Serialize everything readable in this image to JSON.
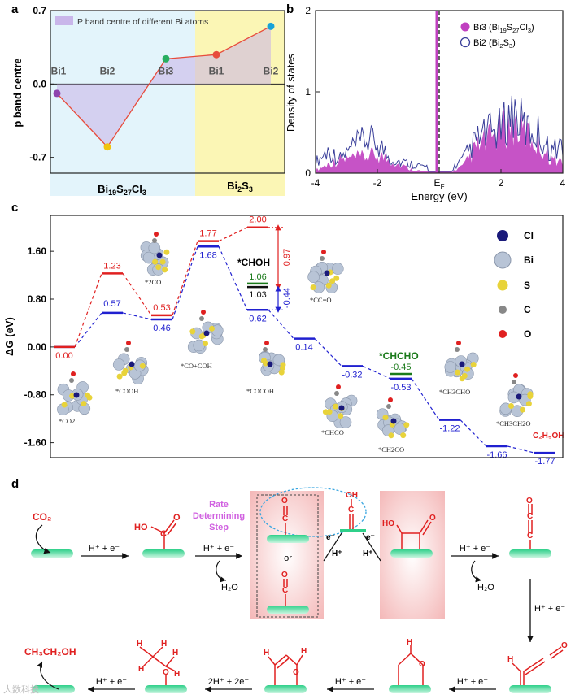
{
  "panel_labels": {
    "a": "a",
    "b": "b",
    "c": "c",
    "d": "d"
  },
  "chart_data": [
    {
      "type": "line",
      "panel": "a",
      "title": "",
      "ylabel": "p band centre",
      "ylim": [
        -0.85,
        0.7
      ],
      "yticks": [
        "0.7",
        "0.0",
        "-0.7"
      ],
      "legend": "P band centre of different Bi atoms",
      "categories": [
        "Bi1",
        "Bi2",
        "Bi3",
        "Bi1",
        "Bi2"
      ],
      "values": [
        -0.09,
        -0.6,
        0.24,
        0.28,
        0.55
      ],
      "groups": [
        {
          "label_main": "Bi",
          "label_sub1": "19",
          "label_mid": "S",
          "label_sub2": "27",
          "label_end": "Cl",
          "label_sub3": "3"
        },
        {
          "label_main": "Bi",
          "label_sub1": "2",
          "label_mid": "S",
          "label_sub2": "3"
        }
      ],
      "point_colors": [
        "#8e44ad",
        "#f1c40f",
        "#27ae60",
        "#e74c3c",
        "#17a2d8"
      ]
    },
    {
      "type": "area",
      "panel": "b",
      "xlabel": "Energy (eV)",
      "ylabel": "Density of states",
      "xlim": [
        -4,
        4
      ],
      "ylim": [
        0,
        2
      ],
      "xticks": [
        "-4",
        "-2",
        "E",
        "2",
        "4"
      ],
      "ef_sub": "F",
      "yticks": [
        "0",
        "1",
        "2"
      ],
      "series": [
        {
          "name": "Bi3 (Bi19S27Cl3)",
          "legend_main": "Bi3 (Bi",
          "s1": "19",
          "m1": "S",
          "s2": "27",
          "m2": "Cl",
          "s3": "3",
          "end": ")",
          "color": "#c040c0",
          "x": [
            -4,
            -3.6,
            -3.2,
            -2.8,
            -2.4,
            -2.0,
            -1.6,
            -1.2,
            -0.8,
            -0.4,
            0,
            0.4,
            0.8,
            1.2,
            1.6,
            2.0,
            2.4,
            2.8,
            3.2,
            3.6,
            4
          ],
          "values": [
            0.04,
            0.12,
            0.18,
            0.2,
            0.22,
            0.25,
            0.18,
            0.1,
            0.04,
            0.02,
            0.0,
            0.02,
            0.1,
            0.35,
            0.45,
            0.6,
            0.65,
            0.55,
            0.4,
            0.2,
            0.15
          ]
        },
        {
          "name": "Bi2 (Bi2S3)",
          "legend_main": "Bi2 (Bi",
          "s1": "2",
          "m1": "S",
          "s2": "3",
          "end": ")",
          "color": "#3a3f9a",
          "x": [
            -4,
            -3.6,
            -3.2,
            -2.8,
            -2.4,
            -2.0,
            -1.6,
            -1.2,
            -0.8,
            -0.4,
            0,
            0.4,
            0.8,
            1.2,
            1.6,
            2.0,
            2.4,
            2.8,
            3.2,
            3.6,
            4
          ],
          "values": [
            0.15,
            0.3,
            0.2,
            0.35,
            0.45,
            0.42,
            0.2,
            0.15,
            0.12,
            0.08,
            0.05,
            0.05,
            0.2,
            0.45,
            0.55,
            0.6,
            0.85,
            0.6,
            0.55,
            0.3,
            0.4
          ]
        }
      ]
    },
    {
      "type": "line",
      "panel": "c",
      "ylabel": "ΔG (eV)",
      "ylim": [
        -1.85,
        2.2
      ],
      "yticks": [
        "1.60",
        "0.80",
        "0.00",
        "-0.80",
        "-1.60"
      ],
      "red_path": [
        0.0,
        1.23,
        0.53,
        1.77,
        2.0
      ],
      "red_labels": [
        "0.00",
        "1.23",
        "0.53",
        "1.77",
        "2.00"
      ],
      "blue_path": [
        0.0,
        0.57,
        0.46,
        1.68,
        0.62,
        0.14,
        -0.32,
        -0.53,
        -1.22,
        -1.66,
        -1.77
      ],
      "blue_labels": [
        "0.57",
        "0.46",
        "1.68",
        "0.62",
        "0.14",
        "-0.32",
        "-0.53",
        "-1.22",
        "-1.66",
        "-1.77"
      ],
      "green_levels": [
        1.06,
        -0.45
      ],
      "green_labels": [
        "1.06",
        "-0.45"
      ],
      "black_value": "1.03",
      "arrow_red": "0.97",
      "arrow_blue": "-0.44",
      "chohh": "*CHOH",
      "chcho": "*CHCHO",
      "ethanol": "C₂H₅OH",
      "species": [
        "*CO2",
        "*COOH",
        "*2CO",
        "*CO+COH",
        "*COCOH",
        "*CC=O",
        "*CHCO",
        "*CH2CO",
        "*CH3CHO",
        "*CH3CH2O"
      ],
      "legend": [
        {
          "name": "Cl",
          "color": "#1a1a7a"
        },
        {
          "name": "Bi",
          "color": "#b8c4d6"
        },
        {
          "name": "S",
          "color": "#e8d33a"
        },
        {
          "name": "C",
          "color": "#888"
        },
        {
          "name": "O",
          "color": "#e02020"
        }
      ]
    }
  ],
  "panel_d": {
    "co2": "CO₂",
    "step": "H⁺ + e⁻",
    "water": "H₂O",
    "rds": [
      "Rate",
      "Determining",
      "Step"
    ],
    "or": "or",
    "hplus": "H⁺",
    "eminus": "e⁻",
    "two_step": "2H⁺ + 2e⁻",
    "ethanol": "CH₃CH₂OH",
    "ho": "HO",
    "oh": "OH"
  },
  "watermark": "大数科技"
}
